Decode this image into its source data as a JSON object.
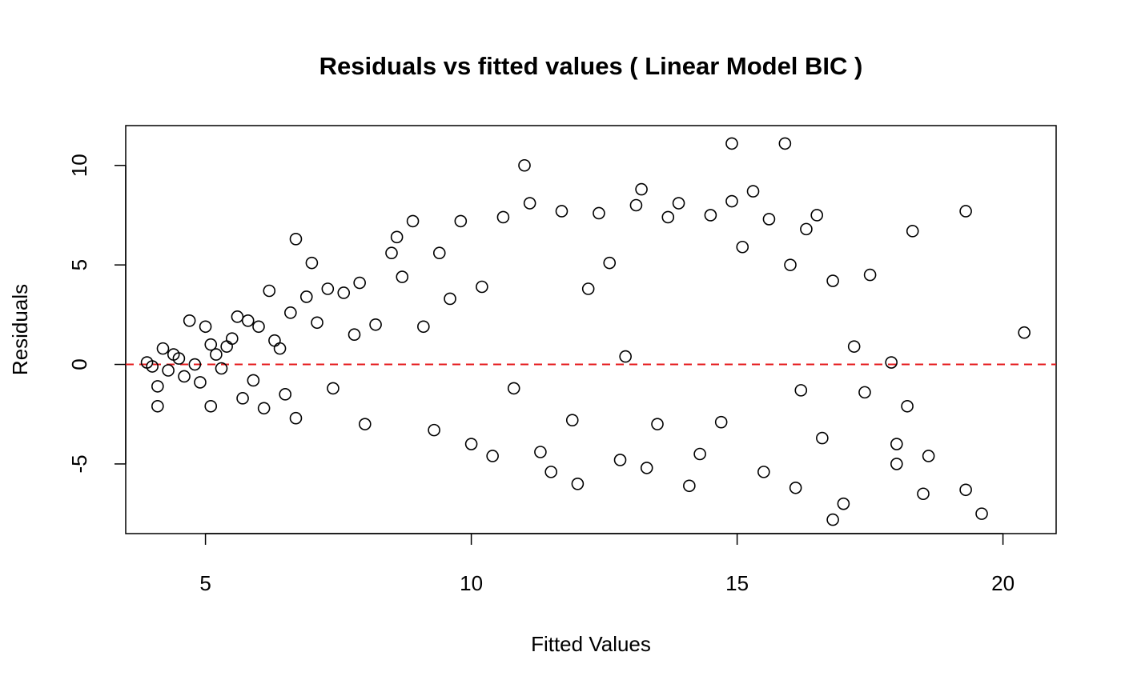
{
  "chart_data": {
    "type": "scatter",
    "title": "Residuals vs fitted values ( Linear Model BIC  )",
    "xlabel": "Fitted Values",
    "ylabel": "Residuals",
    "xlim": [
      3.5,
      21
    ],
    "ylim": [
      -8.5,
      12
    ],
    "x_ticks": [
      5,
      10,
      15,
      20
    ],
    "y_ticks": [
      -5,
      0,
      5,
      10
    ],
    "grid": false,
    "legend": "none",
    "marker": "open-circle",
    "point_color": "#000000",
    "reference_line": {
      "y": 0,
      "style": "dashed",
      "color": "#e41a1c"
    },
    "series": [
      {
        "x": [
          3.9,
          4.0,
          4.1,
          4.1,
          4.2,
          4.3,
          4.4,
          4.5,
          4.6,
          4.7,
          4.8,
          4.9,
          5.0,
          5.1,
          5.1,
          5.2,
          5.3,
          5.4,
          5.5,
          5.6,
          5.7,
          5.8,
          5.9,
          6.0,
          6.1,
          6.2,
          6.3,
          6.4,
          6.5,
          6.6,
          6.7,
          6.7,
          6.9,
          7.0,
          7.1,
          7.3,
          7.4,
          7.6,
          7.8,
          7.9,
          8.0,
          8.2,
          8.5,
          8.6,
          8.7,
          8.9,
          9.1,
          9.3,
          9.4,
          9.6,
          9.8,
          10.0,
          10.2,
          10.4,
          10.6,
          10.8,
          11.0,
          11.1,
          11.3,
          11.5,
          11.7,
          11.9,
          12.0,
          12.2,
          12.4,
          12.6,
          12.8,
          12.9,
          13.1,
          13.2,
          13.3,
          13.5,
          13.7,
          13.9,
          14.1,
          14.3,
          14.5,
          14.7,
          14.9,
          14.9,
          15.1,
          15.3,
          15.5,
          15.6,
          15.9,
          16.0,
          16.1,
          16.2,
          16.3,
          16.5,
          16.6,
          16.8,
          16.8,
          17.0,
          17.2,
          17.4,
          17.5,
          17.9,
          18.0,
          18.0,
          18.2,
          18.3,
          18.5,
          18.6,
          19.3,
          19.3,
          19.6,
          20.4
        ],
        "y": [
          0.1,
          -0.1,
          -2.1,
          -1.1,
          0.8,
          -0.3,
          0.5,
          0.3,
          -0.6,
          2.2,
          0.0,
          -0.9,
          1.9,
          -2.1,
          1.0,
          0.5,
          -0.2,
          0.9,
          1.3,
          2.4,
          -1.7,
          2.2,
          -0.8,
          1.9,
          -2.2,
          3.7,
          1.2,
          0.8,
          -1.5,
          2.6,
          6.3,
          -2.7,
          3.4,
          5.1,
          2.1,
          3.8,
          -1.2,
          3.6,
          1.5,
          4.1,
          -3.0,
          2.0,
          5.6,
          6.4,
          4.4,
          7.2,
          1.9,
          -3.3,
          5.6,
          3.3,
          7.2,
          -4.0,
          3.9,
          -4.6,
          7.4,
          -1.2,
          10.0,
          8.1,
          -4.4,
          -5.4,
          7.7,
          -2.8,
          -6.0,
          3.8,
          7.6,
          5.1,
          -4.8,
          0.4,
          8.0,
          8.8,
          -5.2,
          -3.0,
          7.4,
          8.1,
          -6.1,
          -4.5,
          7.5,
          -2.9,
          8.2,
          11.1,
          5.9,
          8.7,
          -5.4,
          7.3,
          11.1,
          5.0,
          -6.2,
          -1.3,
          6.8,
          7.5,
          -3.7,
          -7.8,
          4.2,
          -7.0,
          0.9,
          -1.4,
          4.5,
          0.1,
          -5.0,
          -4.0,
          -2.1,
          6.7,
          -6.5,
          -4.6,
          -6.3,
          7.7,
          -7.5,
          1.6
        ]
      }
    ]
  }
}
